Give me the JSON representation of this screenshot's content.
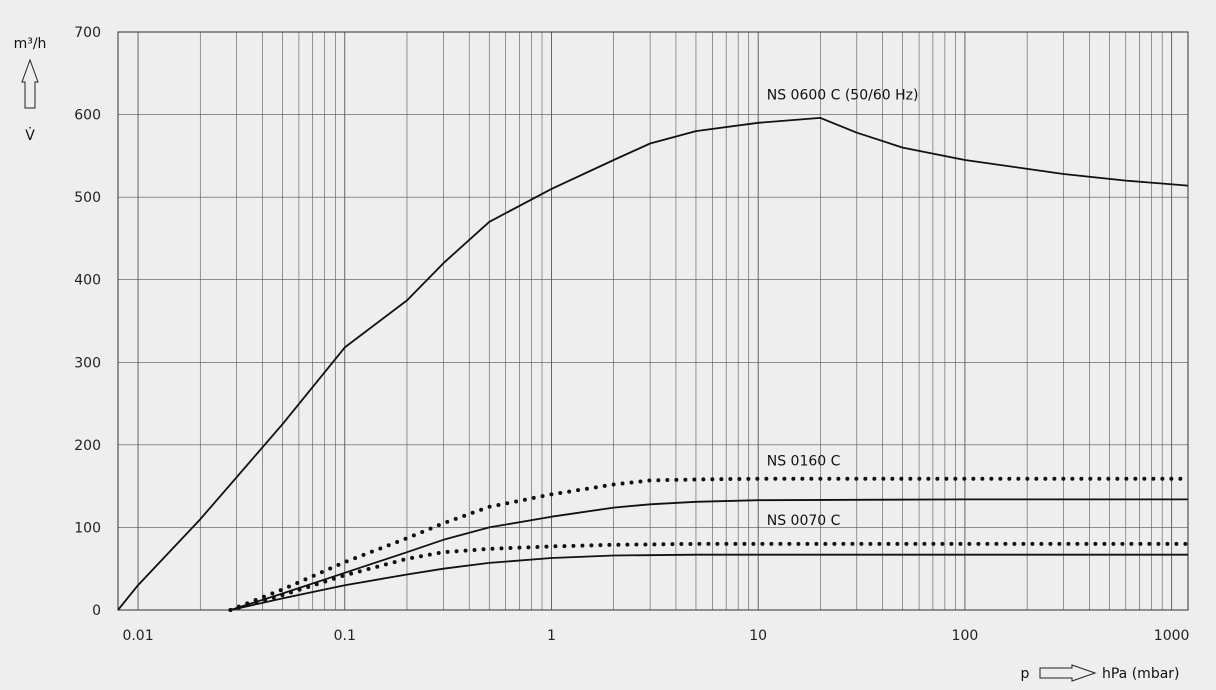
{
  "chart_data": {
    "type": "line",
    "xscale": "log",
    "xlim": [
      0.008,
      1200
    ],
    "ylim": [
      0,
      700
    ],
    "grid": true,
    "y_unit_label": "m³/h",
    "y_symbol": "V̇",
    "x_symbol": "p",
    "x_unit_label": "hPa (mbar)",
    "x_ticks": [
      {
        "value": 0.01,
        "label": "0.01"
      },
      {
        "value": 0.1,
        "label": "0.1"
      },
      {
        "value": 1,
        "label": "1"
      },
      {
        "value": 10,
        "label": "10"
      },
      {
        "value": 100,
        "label": "100"
      },
      {
        "value": 1000,
        "label": "1000"
      }
    ],
    "y_ticks": [
      {
        "value": 0,
        "label": "0"
      },
      {
        "value": 100,
        "label": "100"
      },
      {
        "value": 200,
        "label": "200"
      },
      {
        "value": 300,
        "label": "300"
      },
      {
        "value": 400,
        "label": "400"
      },
      {
        "value": 500,
        "label": "500"
      },
      {
        "value": 600,
        "label": "600"
      },
      {
        "value": 700,
        "label": "700"
      }
    ],
    "annotations": [
      {
        "text": "NS 0600 C (50/60 Hz)",
        "x": 11,
        "y": 618
      },
      {
        "text": "NS 0160 C",
        "x": 11,
        "y": 175
      },
      {
        "text": "NS 0070 C",
        "x": 11,
        "y": 103
      }
    ],
    "series": [
      {
        "style": "solid",
        "x": [
          0.008,
          0.01,
          0.02,
          0.05,
          0.1,
          0.2,
          0.3,
          0.5,
          1,
          2,
          3,
          5,
          10,
          20,
          30,
          50,
          100,
          300,
          600,
          1200
        ],
        "y": [
          0,
          30,
          110,
          225,
          318,
          375,
          420,
          470,
          510,
          545,
          565,
          580,
          590,
          596,
          578,
          560,
          545,
          528,
          520,
          514
        ]
      },
      {
        "style": "dotted",
        "x": [
          0.028,
          0.05,
          0.1,
          0.2,
          0.3,
          0.5,
          1,
          2,
          3,
          5,
          10,
          100,
          1200
        ],
        "y": [
          0,
          25,
          58,
          87,
          105,
          125,
          140,
          152,
          157,
          158,
          159,
          159,
          159
        ]
      },
      {
        "style": "solid",
        "x": [
          0.028,
          0.05,
          0.1,
          0.2,
          0.3,
          0.5,
          1,
          2,
          3,
          5,
          10,
          100,
          1200
        ],
        "y": [
          0,
          20,
          45,
          70,
          85,
          100,
          113,
          124,
          128,
          131,
          133,
          134,
          134
        ]
      },
      {
        "style": "dotted",
        "x": [
          0.028,
          0.05,
          0.1,
          0.2,
          0.3,
          0.5,
          1,
          2,
          5,
          10,
          100,
          1200
        ],
        "y": [
          0,
          18,
          42,
          62,
          70,
          74,
          77,
          79,
          80,
          80,
          80,
          80
        ]
      },
      {
        "style": "solid",
        "x": [
          0.028,
          0.05,
          0.1,
          0.2,
          0.3,
          0.5,
          1,
          2,
          5,
          10,
          100,
          1200
        ],
        "y": [
          0,
          14,
          30,
          43,
          50,
          57,
          63,
          66,
          67,
          67,
          67,
          67
        ]
      }
    ]
  }
}
